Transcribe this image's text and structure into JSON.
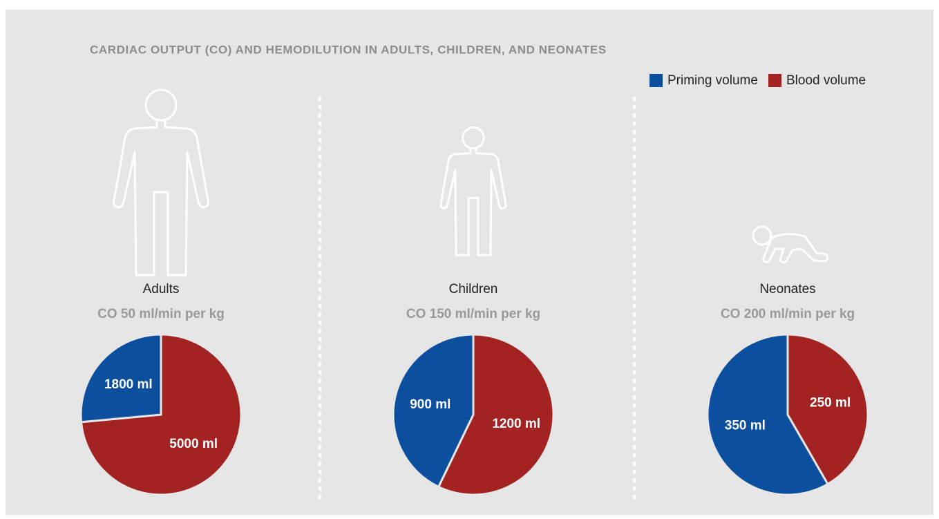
{
  "title": "CARDIAC OUTPUT (CO) AND HEMODILUTION IN ADULTS, CHILDREN, AND NEONATES",
  "chart_data": [
    {
      "type": "pie",
      "title": "Adults",
      "subtitle": "CO 50 ml/min per kg",
      "categories": [
        "Priming volume",
        "Blood volume"
      ],
      "values": [
        1800,
        5000
      ],
      "value_labels": [
        "1800 ml",
        "5000 ml"
      ],
      "colors": [
        "#0b4f9e",
        "#a32323"
      ]
    },
    {
      "type": "pie",
      "title": "Children",
      "subtitle": "CO 150 ml/min per kg",
      "categories": [
        "Priming volume",
        "Blood volume"
      ],
      "values": [
        900,
        1200
      ],
      "value_labels": [
        "900 ml",
        "1200 ml"
      ],
      "colors": [
        "#0b4f9e",
        "#a32323"
      ]
    },
    {
      "type": "pie",
      "title": "Neonates",
      "subtitle": "CO 200 ml/min per kg",
      "categories": [
        "Priming volume",
        "Blood volume"
      ],
      "values": [
        350,
        250
      ],
      "value_labels": [
        "350 ml",
        "250 ml"
      ],
      "colors": [
        "#0b4f9e",
        "#a32323"
      ]
    }
  ]
}
